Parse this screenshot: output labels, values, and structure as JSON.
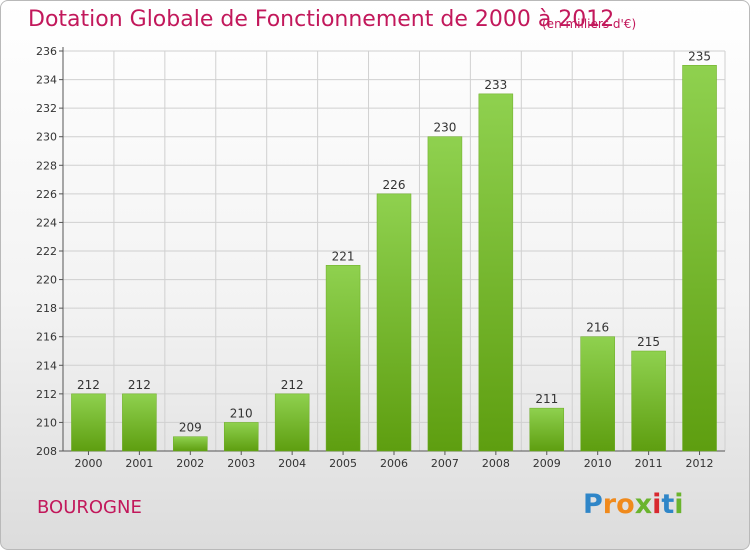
{
  "title": "Dotation Globale de Fonctionnement de 2000 à 2012",
  "subtitle": "(en milliers d'€)",
  "commune": "BOUROGNE",
  "logo": {
    "parts": [
      "P",
      "r",
      "o",
      "x",
      "i",
      "t",
      "i"
    ]
  },
  "colors": {
    "title": "#c2185b",
    "bar_top": "#8fd14f",
    "bar_bottom": "#5e9e10"
  },
  "chart_data": {
    "type": "bar",
    "categories": [
      "2000",
      "2001",
      "2002",
      "2003",
      "2004",
      "2005",
      "2006",
      "2007",
      "2008",
      "2009",
      "2010",
      "2011",
      "2012"
    ],
    "values": [
      212,
      212,
      209,
      210,
      212,
      221,
      226,
      230,
      233,
      211,
      216,
      215,
      235
    ],
    "ylim": [
      208,
      236
    ],
    "yticks": [
      208,
      210,
      212,
      214,
      216,
      218,
      220,
      222,
      224,
      226,
      228,
      230,
      232,
      234,
      236
    ],
    "grid": true
  }
}
